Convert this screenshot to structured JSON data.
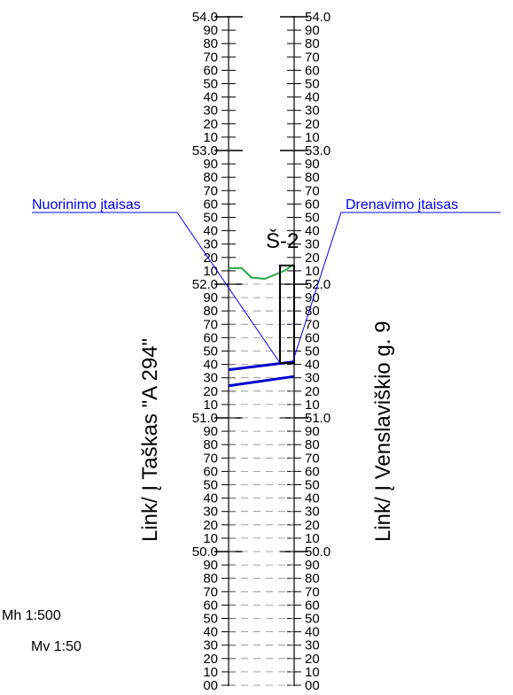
{
  "elevation_scale": {
    "top_value": 54.0,
    "bottom_value": 49.0,
    "major_step": 1.0,
    "minor_step": 0.1
  },
  "labels": {
    "left_vertical": "Link/ Į Taškas \"A 294\"",
    "right_vertical": "Link/ Į Venslaviškio g. 9",
    "structure": "Š-2",
    "callout_left": "Nuorinimo įtaisas",
    "callout_right": "Drenavimo įtaisas",
    "scale_h": "Mh 1:500",
    "scale_v": "Mv 1:50"
  },
  "profile": {
    "ground": {
      "color": "#22aa44",
      "points": [
        [
          0.0,
          52.12
        ],
        [
          0.2,
          52.12
        ],
        [
          0.35,
          52.05
        ],
        [
          0.55,
          52.04
        ],
        [
          0.85,
          52.1
        ],
        [
          1.0,
          52.15
        ]
      ]
    },
    "pipe_upper": {
      "color": "#0000cc",
      "start": 51.36,
      "end": 51.42
    },
    "pipe_lower": {
      "color": "#0000cc",
      "start": 51.24,
      "end": 51.31
    },
    "manhole": {
      "top": 52.14,
      "bottom": 51.41
    }
  }
}
